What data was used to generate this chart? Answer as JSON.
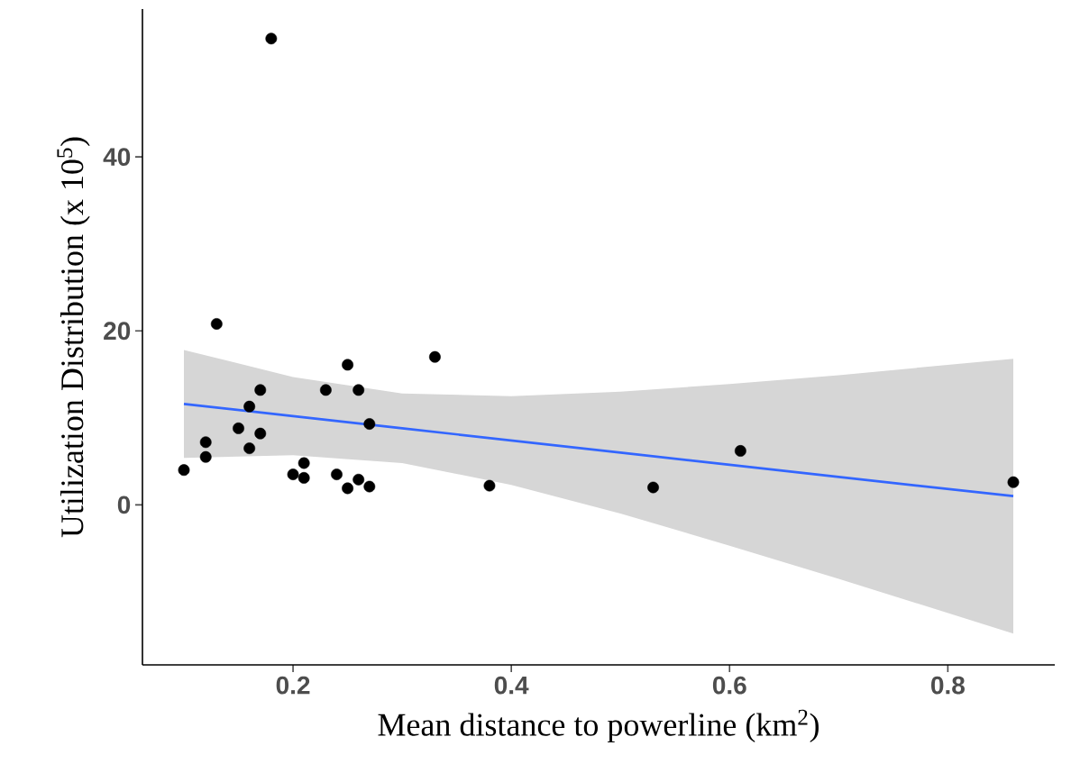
{
  "chart_data": {
    "type": "scatter",
    "xlabel": "Mean distance to powerline (km$^{2}$)",
    "ylabel": "Utilization Distribution (x 10$^{5}$)",
    "xlim": [
      0.062,
      0.898
    ],
    "ylim": [
      -18.4,
      57
    ],
    "xticks": [
      0.2,
      0.4,
      0.6,
      0.8
    ],
    "yticks": [
      0,
      20,
      40
    ],
    "series": [
      {
        "type": "scatter",
        "marker": "circle",
        "color": "#000000",
        "x": [
          0.1,
          0.12,
          0.12,
          0.13,
          0.15,
          0.16,
          0.16,
          0.17,
          0.17,
          0.18,
          0.2,
          0.21,
          0.21,
          0.23,
          0.24,
          0.25,
          0.25,
          0.26,
          0.26,
          0.27,
          0.27,
          0.33,
          0.38,
          0.53,
          0.61,
          0.86
        ],
        "values": [
          4.0,
          7.2,
          5.5,
          20.8,
          8.8,
          11.3,
          6.5,
          13.2,
          8.2,
          53.6,
          3.5,
          4.8,
          3.1,
          13.2,
          3.5,
          16.1,
          1.9,
          13.2,
          2.9,
          9.3,
          2.1,
          17.0,
          2.2,
          2.0,
          6.2,
          2.6
        ]
      },
      {
        "type": "line",
        "color": "#3366ff",
        "x": [
          0.1,
          0.2,
          0.3,
          0.4,
          0.5,
          0.6,
          0.7,
          0.86
        ],
        "values": [
          11.6,
          10.2,
          8.8,
          7.4,
          6.0,
          4.6,
          3.2,
          1.0
        ],
        "lower": [
          5.4,
          5.7,
          4.8,
          2.3,
          -1.0,
          -4.7,
          -8.5,
          -14.8
        ],
        "upper": [
          17.8,
          14.7,
          12.8,
          12.5,
          13.0,
          13.9,
          14.9,
          16.8
        ]
      }
    ]
  }
}
